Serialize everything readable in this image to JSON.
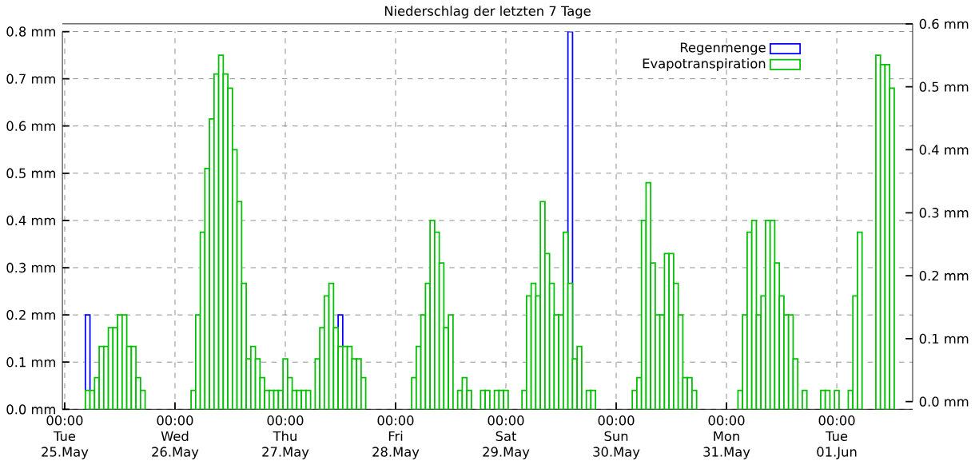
{
  "chart_data": {
    "type": "bar",
    "title": "Niederschlag der letzten 7 Tage",
    "categories": [
      "00:00 Tue 25.May",
      null,
      null,
      null,
      null,
      null,
      null,
      null,
      null,
      null,
      null,
      null,
      null,
      null,
      null,
      null,
      null,
      null,
      null,
      null,
      null,
      null,
      null,
      null,
      "00:00 Wed 26.May",
      null,
      null,
      null,
      null,
      null,
      null,
      null,
      null,
      null,
      null,
      null,
      null,
      null,
      null,
      null,
      null,
      null,
      null,
      null,
      null,
      null,
      null,
      null,
      "00:00 Thu 27.May",
      null,
      null,
      null,
      null,
      null,
      null,
      null,
      null,
      null,
      null,
      null,
      null,
      null,
      null,
      null,
      null,
      null,
      null,
      null,
      null,
      null,
      null,
      null,
      "00:00 Fri 28.May",
      null,
      null,
      null,
      null,
      null,
      null,
      null,
      null,
      null,
      null,
      null,
      null,
      null,
      null,
      null,
      null,
      null,
      null,
      null,
      null,
      null,
      null,
      null,
      "00:00 Sat 29.May",
      null,
      null,
      null,
      null,
      null,
      null,
      null,
      null,
      null,
      null,
      null,
      null,
      null,
      null,
      null,
      null,
      null,
      null,
      null,
      null,
      null,
      null,
      null,
      "00:00 Sun 30.May",
      null,
      null,
      null,
      null,
      null,
      null,
      null,
      null,
      null,
      null,
      null,
      null,
      null,
      null,
      null,
      null,
      null,
      null,
      null,
      null,
      null,
      null,
      null,
      "00:00 Mon 31.May",
      null,
      null,
      null,
      null,
      null,
      null,
      null,
      null,
      null,
      null,
      null,
      null,
      null,
      null,
      null,
      null,
      null,
      null,
      null,
      null,
      null,
      null,
      null,
      "00:00 Tue 01.Jun",
      null,
      null,
      null,
      null,
      null,
      null,
      null,
      null,
      null,
      null,
      null,
      null,
      null,
      null,
      null,
      null
    ],
    "series": [
      {
        "name": "Regenmenge",
        "color": "#0000ff",
        "values": [
          null,
          null,
          null,
          null,
          null,
          0.2,
          null,
          null,
          null,
          null,
          null,
          null,
          null,
          null,
          null,
          null,
          null,
          null,
          null,
          null,
          null,
          null,
          null,
          null,
          null,
          null,
          null,
          null,
          null,
          null,
          null,
          null,
          null,
          null,
          null,
          null,
          null,
          null,
          null,
          null,
          null,
          null,
          null,
          null,
          null,
          null,
          null,
          null,
          null,
          null,
          null,
          null,
          null,
          null,
          null,
          null,
          null,
          null,
          null,
          null,
          0.2,
          null,
          null,
          null,
          null,
          null,
          null,
          null,
          null,
          null,
          null,
          null,
          null,
          null,
          null,
          null,
          null,
          null,
          null,
          null,
          null,
          null,
          null,
          null,
          null,
          null,
          null,
          null,
          null,
          null,
          null,
          null,
          null,
          null,
          null,
          null,
          null,
          null,
          null,
          null,
          null,
          null,
          null,
          null,
          null,
          null,
          null,
          null,
          null,
          null,
          0.8,
          null,
          null,
          null,
          null,
          null,
          null,
          null,
          null,
          null,
          null,
          null,
          null,
          null,
          null,
          null,
          null,
          null,
          null,
          null,
          null,
          null,
          null,
          null,
          null,
          null,
          null,
          null,
          null,
          null,
          null,
          null,
          null,
          null,
          null,
          null,
          null,
          null,
          null,
          null,
          null,
          null,
          null,
          null,
          null,
          null,
          null,
          null,
          null,
          null,
          null,
          null,
          null,
          null,
          null,
          null,
          null,
          null,
          null,
          null,
          null,
          null,
          null,
          null,
          null,
          null,
          null,
          null,
          null,
          null,
          null,
          null,
          null,
          null,
          null
        ]
      },
      {
        "name": "Evapotranspiration",
        "color": "#00c000",
        "values": [
          null,
          null,
          null,
          null,
          null,
          0.04,
          0.04,
          0.067,
          0.133,
          0.133,
          0.173,
          0.173,
          0.2,
          0.2,
          0.133,
          0.133,
          0.067,
          0.04,
          null,
          null,
          null,
          null,
          null,
          null,
          null,
          null,
          null,
          null,
          0.04,
          0.2,
          0.375,
          0.51,
          0.615,
          0.71,
          0.75,
          0.71,
          0.68,
          0.55,
          0.44,
          0.267,
          0.107,
          0.133,
          0.107,
          0.067,
          0.04,
          0.04,
          0.04,
          0.04,
          0.107,
          0.067,
          0.04,
          0.04,
          0.04,
          0.04,
          null,
          0.107,
          0.173,
          0.24,
          0.267,
          0.173,
          0.133,
          0.133,
          0.133,
          0.107,
          0.107,
          0.067,
          null,
          null,
          null,
          null,
          null,
          null,
          null,
          null,
          null,
          null,
          0.067,
          0.133,
          0.2,
          0.267,
          0.4,
          0.375,
          0.31,
          0.173,
          0.2,
          null,
          0.04,
          0.067,
          0.04,
          null,
          null,
          0.04,
          0.04,
          null,
          0.04,
          0.04,
          0.04,
          null,
          null,
          null,
          0.04,
          0.24,
          0.267,
          0.24,
          0.44,
          0.33,
          0.267,
          0.2,
          0.2,
          0.375,
          0.267,
          0.107,
          0.133,
          null,
          0.04,
          0.04,
          null,
          null,
          null,
          null,
          null,
          null,
          null,
          null,
          0.04,
          0.067,
          0.4,
          0.48,
          0.31,
          0.2,
          0.2,
          0.33,
          0.33,
          0.267,
          0.2,
          0.067,
          0.067,
          0.04,
          null,
          null,
          null,
          null,
          null,
          null,
          null,
          null,
          null,
          0.04,
          0.2,
          0.375,
          0.4,
          0.2,
          0.24,
          0.4,
          0.4,
          0.31,
          0.24,
          0.2,
          0.2,
          0.107,
          null,
          0.04,
          null,
          null,
          null,
          0.04,
          0.04,
          null,
          0.04,
          null,
          null,
          0.04,
          0.24,
          0.375,
          null,
          null,
          null,
          0.75,
          0.73,
          0.73,
          0.68,
          null,
          null,
          null,
          null
        ]
      }
    ],
    "ylim": [
      0,
      0.8
    ],
    "yticks": [
      {
        "value": 0,
        "label": "0.0 mm"
      },
      {
        "value": 0.1,
        "label": "0.1 mm"
      },
      {
        "value": 0.2,
        "label": "0.2 mm"
      },
      {
        "value": 0.3,
        "label": "0.3 mm"
      },
      {
        "value": 0.4,
        "label": "0.4 mm"
      },
      {
        "value": 0.5,
        "label": "0.5 mm"
      },
      {
        "value": 0.6,
        "label": "0.6 mm"
      },
      {
        "value": 0.7,
        "label": "0.7 mm"
      },
      {
        "value": 0.8,
        "label": "0.8 mm"
      }
    ],
    "y2lim": [
      0,
      0.6
    ],
    "y2ticks": [
      {
        "value": 0,
        "label": "0.0 mm"
      },
      {
        "value": 0.1,
        "label": "0.1 mm"
      },
      {
        "value": 0.2,
        "label": "0.2 mm"
      },
      {
        "value": 0.3,
        "label": "0.3 mm"
      },
      {
        "value": 0.4,
        "label": "0.4 mm"
      },
      {
        "value": 0.5,
        "label": "0.5 mm"
      },
      {
        "value": 0.6,
        "label": "0.6 mm"
      }
    ],
    "grid": true,
    "legend": "top right"
  }
}
